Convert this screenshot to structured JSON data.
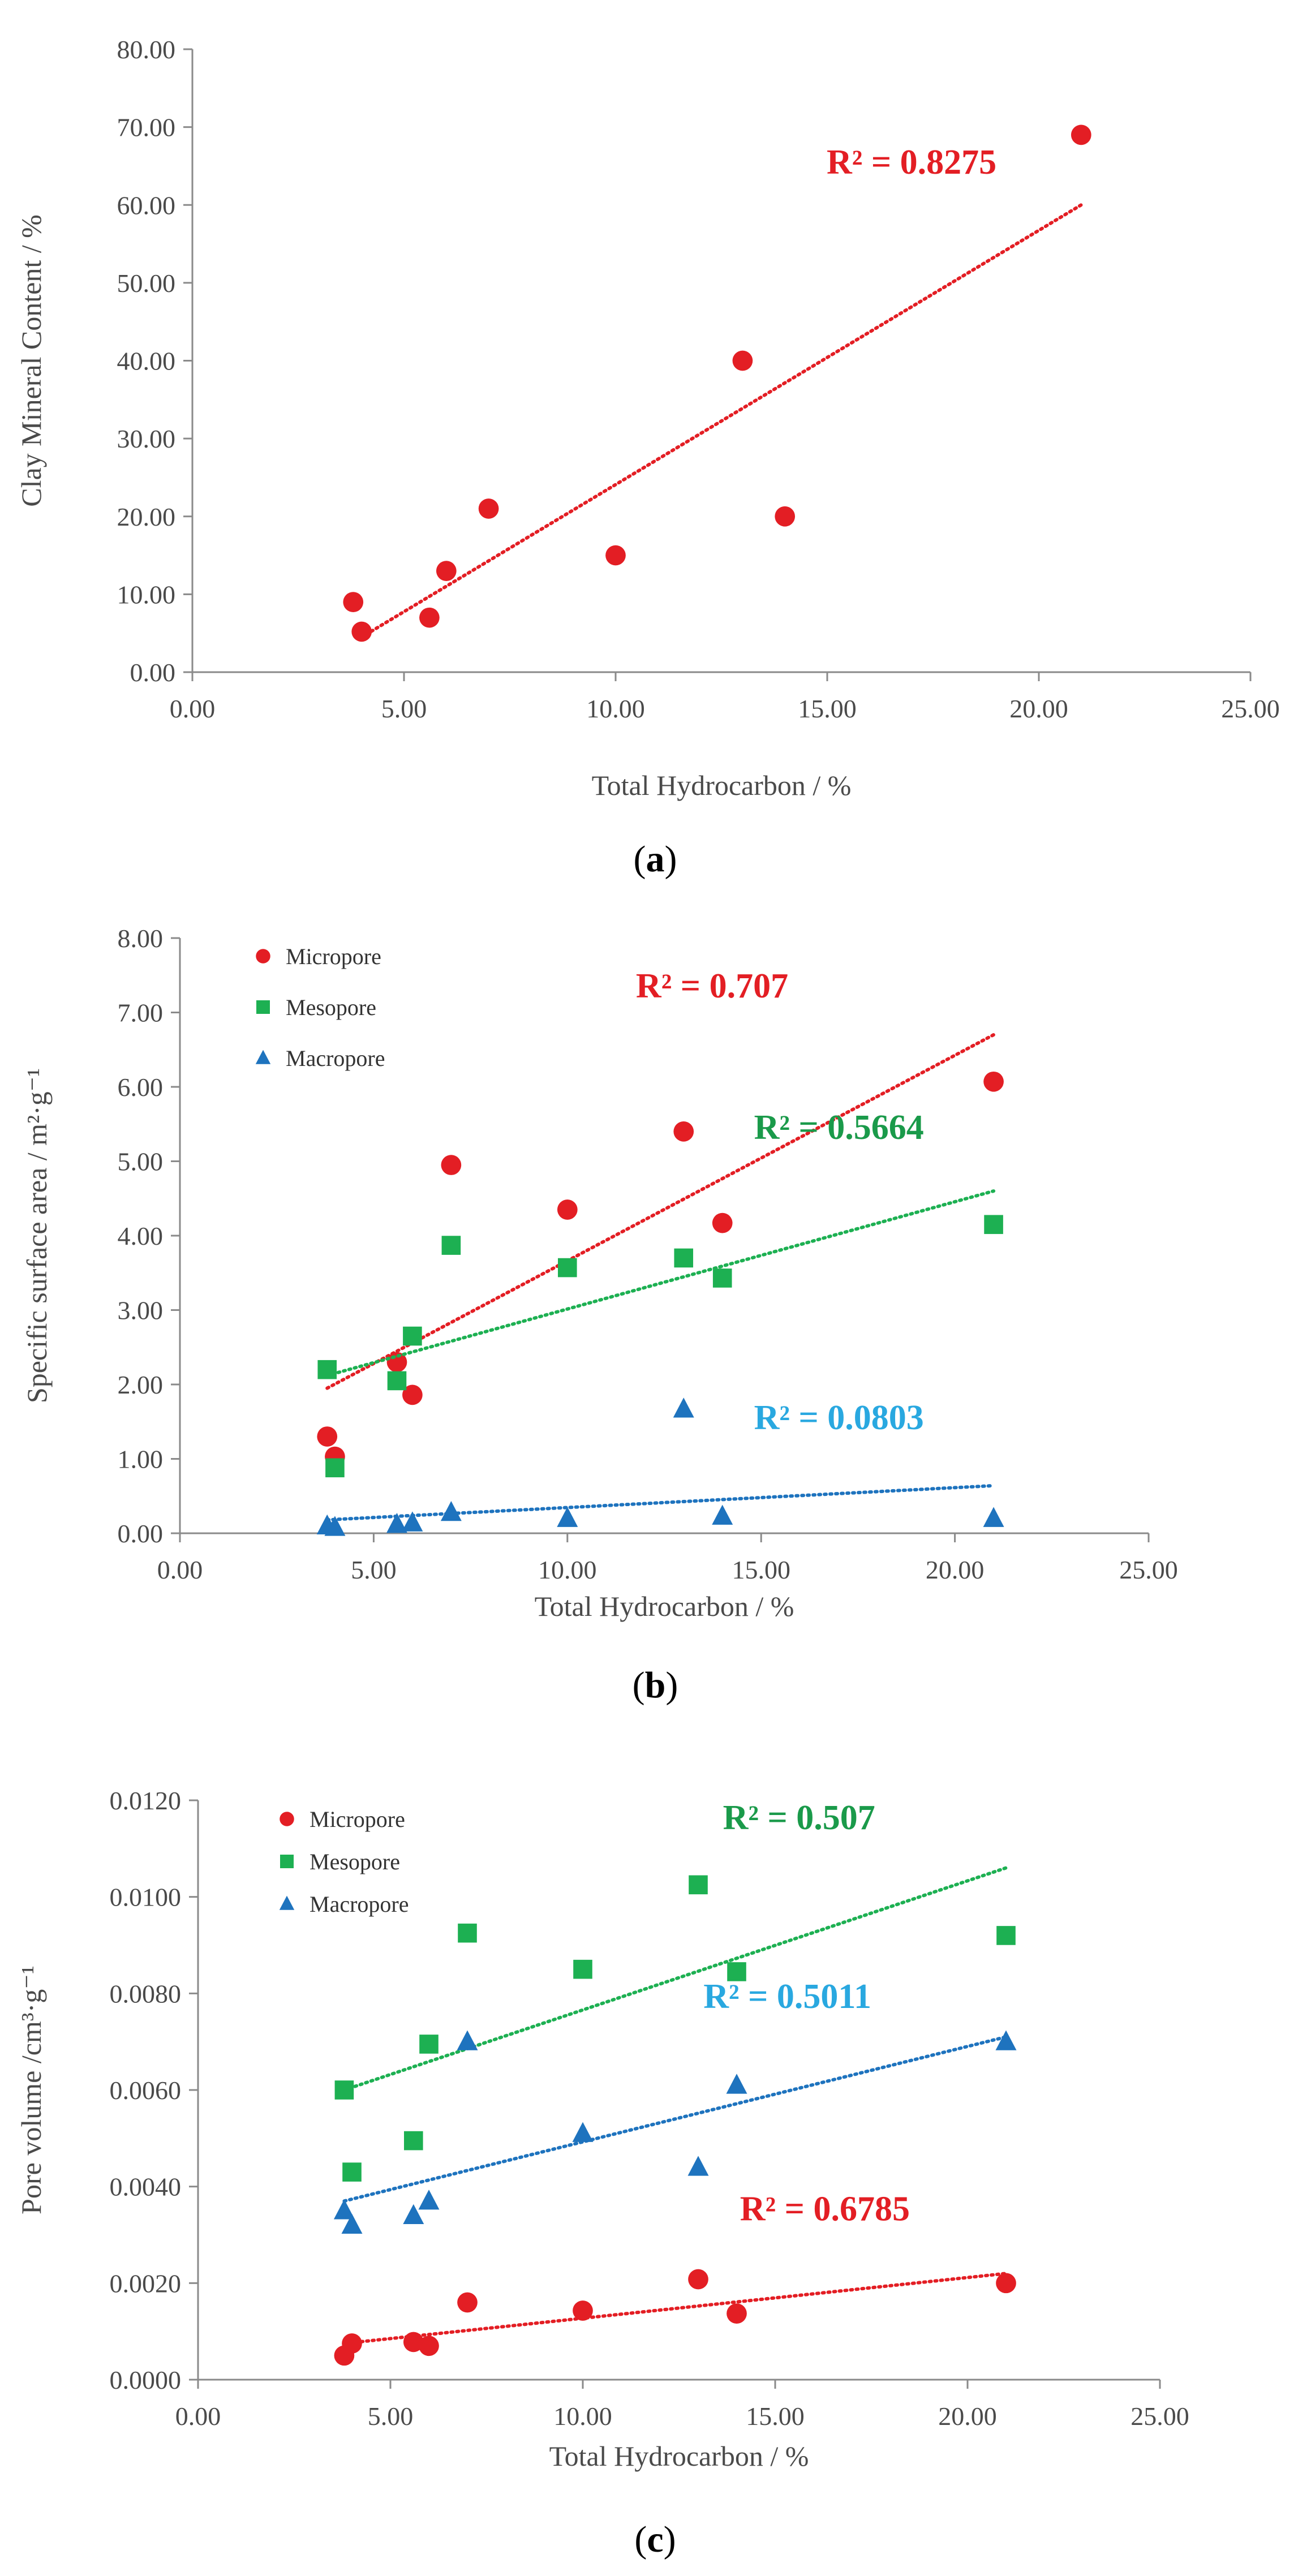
{
  "chart_data": [
    {
      "type": "scatter",
      "panel_label": "a",
      "xlabel": "Total Hydrocarbon / %",
      "ylabel": "Clay  Mineral  Content / %",
      "xlim": [
        0,
        25
      ],
      "ylim": [
        0,
        80
      ],
      "xticks": [
        0,
        5,
        10,
        15,
        20,
        25
      ],
      "yticks": [
        0,
        10,
        20,
        30,
        40,
        50,
        60,
        70,
        80
      ],
      "x_decimals": 2,
      "y_decimals": 2,
      "grid": false,
      "legend": "none",
      "series": [
        {
          "name": "Clay Mineral Content",
          "marker": "circle",
          "color": "#e31e24",
          "x": [
            3.8,
            4.0,
            5.6,
            6.0,
            7.0,
            10.0,
            13.0,
            14.0,
            21.0
          ],
          "y": [
            9.0,
            5.2,
            7.0,
            13.0,
            21.0,
            15.0,
            40.0,
            20.0,
            69.0
          ],
          "trendline": {
            "type": "linear",
            "x_range": [
              4.0,
              21.0
            ],
            "y_range": [
              4.5,
              60.0
            ]
          },
          "r2_label": "R² = 0.8275",
          "r2_at": [
            19.0,
            64.0
          ]
        }
      ]
    },
    {
      "type": "scatter",
      "panel_label": "b",
      "xlabel": "Total Hydrocarbon / %",
      "ylabel": "Specific surface area / m²·g⁻¹",
      "xlim": [
        0,
        25
      ],
      "ylim": [
        0,
        8
      ],
      "xticks": [
        0,
        5,
        10,
        15,
        20,
        25
      ],
      "yticks": [
        0,
        1,
        2,
        3,
        4,
        5,
        6,
        7,
        8
      ],
      "x_decimals": 2,
      "y_decimals": 2,
      "grid": false,
      "legend": "top-left",
      "series": [
        {
          "name": "Micropore",
          "marker": "circle",
          "color": "#e31e24",
          "x": [
            3.8,
            4.0,
            5.6,
            6.0,
            7.0,
            10.0,
            13.0,
            14.0,
            21.0
          ],
          "y": [
            1.3,
            1.03,
            2.3,
            1.86,
            4.95,
            4.35,
            5.4,
            4.17,
            6.07
          ],
          "trendline": {
            "type": "linear",
            "x_range": [
              3.8,
              21.0
            ],
            "y_range": [
              1.95,
              6.7
            ]
          },
          "r2_label": "R² = 0.707",
          "r2_at": [
            15.7,
            7.2
          ]
        },
        {
          "name": "Mesopore",
          "marker": "square",
          "color": "#1db052",
          "x": [
            3.8,
            4.0,
            5.6,
            6.0,
            7.0,
            10.0,
            13.0,
            14.0,
            21.0
          ],
          "y": [
            2.2,
            0.88,
            2.05,
            2.65,
            3.87,
            3.57,
            3.7,
            3.43,
            4.15
          ],
          "trendline": {
            "type": "linear",
            "x_range": [
              3.8,
              21.0
            ],
            "y_range": [
              2.12,
              4.6
            ]
          },
          "r2_label": "R² = 0.5664",
          "r2_at": [
            19.2,
            5.3
          ]
        },
        {
          "name": "Macropore",
          "marker": "triangle",
          "color": "#1e73be",
          "x": [
            3.8,
            4.0,
            5.6,
            6.0,
            7.0,
            10.0,
            13.0,
            14.0,
            21.0
          ],
          "y": [
            0.1,
            0.08,
            0.12,
            0.14,
            0.28,
            0.2,
            1.67,
            0.23,
            0.2
          ],
          "trendline": {
            "type": "linear",
            "x_range": [
              3.8,
              21.0
            ],
            "y_range": [
              0.18,
              0.64
            ]
          },
          "r2_label": "R² = 0.0803",
          "r2_at": [
            19.2,
            1.4
          ]
        }
      ]
    },
    {
      "type": "scatter",
      "panel_label": "c",
      "xlabel": "Total Hydrocarbon / %",
      "ylabel": "Pore  volume /cm³·g⁻¹",
      "xlim": [
        0,
        25
      ],
      "ylim": [
        0,
        0.012
      ],
      "xticks": [
        0,
        5,
        10,
        15,
        20,
        25
      ],
      "yticks": [
        0,
        0.002,
        0.004,
        0.006,
        0.008,
        0.01,
        0.012
      ],
      "x_decimals": 2,
      "y_decimals": 4,
      "grid": false,
      "legend": "top-left",
      "series": [
        {
          "name": "Micropore",
          "marker": "circle",
          "color": "#e31e24",
          "x": [
            3.8,
            4.0,
            5.6,
            6.0,
            7.0,
            10.0,
            13.0,
            14.0,
            21.0
          ],
          "y": [
            0.0005,
            0.00075,
            0.00078,
            0.0007,
            0.0016,
            0.00143,
            0.00208,
            0.00137,
            0.002
          ],
          "trendline": {
            "type": "linear",
            "x_range": [
              3.8,
              21.0
            ],
            "y_range": [
              0.00075,
              0.0022
            ]
          },
          "r2_label": "R² = 0.6785",
          "r2_at": [
            18.5,
            0.0033
          ]
        },
        {
          "name": "Mesopore",
          "marker": "square",
          "color": "#1db052",
          "x": [
            3.8,
            4.0,
            5.6,
            6.0,
            7.0,
            10.0,
            13.0,
            14.0,
            21.0
          ],
          "y": [
            0.006,
            0.0043,
            0.00495,
            0.00695,
            0.00925,
            0.0085,
            0.01025,
            0.00845,
            0.0092
          ],
          "trendline": {
            "type": "linear",
            "x_range": [
              3.8,
              21.0
            ],
            "y_range": [
              0.006,
              0.0106
            ]
          },
          "r2_label": "R² = 0.507",
          "r2_at": [
            17.6,
            0.0114
          ]
        },
        {
          "name": "Macropore",
          "marker": "triangle",
          "color": "#1e73be",
          "x": [
            3.8,
            4.0,
            5.6,
            6.0,
            7.0,
            10.0,
            13.0,
            14.0,
            21.0
          ],
          "y": [
            0.0035,
            0.0032,
            0.0034,
            0.0037,
            0.007,
            0.0051,
            0.0044,
            0.0061,
            0.007
          ],
          "trendline": {
            "type": "linear",
            "x_range": [
              3.8,
              21.0
            ],
            "y_range": [
              0.0037,
              0.0071
            ]
          },
          "r2_label": "R² = 0.5011",
          "r2_at": [
            17.5,
            0.0077
          ]
        }
      ]
    }
  ],
  "r2_colors": {
    "red": "#e31e24",
    "green": "#1a9a4a",
    "blue": "#29a8e0"
  }
}
